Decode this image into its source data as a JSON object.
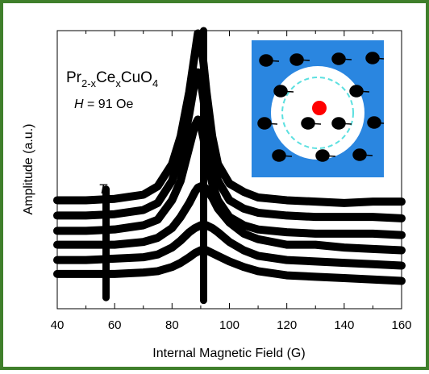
{
  "chart_data": {
    "type": "line",
    "x_label": "Internal Magnetic Field (G)",
    "y_label": "Amplitude (a.u.)",
    "annotations": {
      "formula": [
        "Pr",
        "2-x",
        "Ce",
        "x",
        "CuO",
        "4"
      ],
      "field": [
        "H",
        " = 91 Oe"
      ],
      "temperature": "T"
    },
    "x": [
      40,
      50,
      60,
      70,
      75,
      80,
      83,
      86,
      88,
      89,
      90,
      91,
      92,
      94,
      96,
      100,
      105,
      110,
      120,
      130,
      140,
      150,
      160
    ],
    "series": [
      {
        "color": "#000000",
        "values": [
          3.9,
          3.9,
          3.95,
          4.1,
          4.4,
          5.2,
          6.2,
          7.8,
          9.2,
          9.9,
          9.6,
          8.8,
          7.8,
          6.2,
          5.2,
          4.5,
          4.2,
          4.0,
          3.9,
          3.85,
          3.8,
          3.85,
          3.85
        ]
      },
      {
        "color": "#000000",
        "values": [
          3.35,
          3.35,
          3.4,
          3.55,
          3.8,
          4.6,
          5.5,
          7.0,
          8.2,
          8.5,
          8.2,
          7.5,
          6.7,
          5.4,
          4.6,
          3.9,
          3.6,
          3.45,
          3.35,
          3.3,
          3.3,
          3.3,
          3.25
        ]
      },
      {
        "color": "#000000",
        "values": [
          2.8,
          2.8,
          2.85,
          3.0,
          3.2,
          3.9,
          4.6,
          5.8,
          6.6,
          6.8,
          6.6,
          6.1,
          5.5,
          4.5,
          3.9,
          3.3,
          3.0,
          2.85,
          2.75,
          2.7,
          2.7,
          2.7,
          2.65
        ]
      },
      {
        "color": "#000000",
        "values": [
          2.3,
          2.3,
          2.3,
          2.4,
          2.55,
          2.9,
          3.3,
          3.8,
          4.2,
          4.35,
          4.4,
          4.4,
          4.3,
          4.0,
          3.6,
          3.1,
          2.7,
          2.5,
          2.3,
          2.3,
          2.2,
          2.15,
          2.1
        ]
      },
      {
        "color": "#000000",
        "values": [
          1.75,
          1.75,
          1.8,
          1.85,
          1.95,
          2.2,
          2.45,
          2.75,
          2.9,
          2.95,
          3.0,
          3.0,
          3.0,
          2.9,
          2.75,
          2.4,
          2.1,
          1.9,
          1.75,
          1.7,
          1.65,
          1.6,
          1.55
        ]
      },
      {
        "color": "#000000",
        "values": [
          1.25,
          1.25,
          1.25,
          1.3,
          1.35,
          1.5,
          1.65,
          1.85,
          2.0,
          2.05,
          2.1,
          2.1,
          2.1,
          2.0,
          1.9,
          1.7,
          1.5,
          1.35,
          1.2,
          1.15,
          1.1,
          1.05,
          1.0
        ]
      }
    ],
    "markers": [
      {
        "x": 91,
        "y": [
          0.3,
          10
        ]
      },
      {
        "x": 57,
        "y": [
          0.4,
          4.3
        ]
      }
    ],
    "xlim": [
      40,
      160
    ],
    "xticks": [
      40,
      60,
      80,
      100,
      120,
      140,
      160
    ],
    "xminorticks": [
      50,
      70,
      90,
      110,
      130,
      150
    ],
    "ylim": [
      0,
      10
    ]
  }
}
